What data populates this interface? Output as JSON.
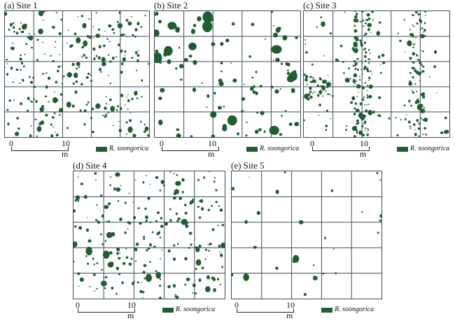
{
  "panels": [
    {
      "id": "p1",
      "title": "(a) Site 1",
      "scale_zero": "0",
      "scale_end": "10 m",
      "legend_label": "R. soongorica"
    },
    {
      "id": "p2",
      "title": "(b) Site 2",
      "scale_zero": "0",
      "scale_end": "10 m",
      "legend_label": "R. soongorica"
    },
    {
      "id": "p3",
      "title": "(c) Site 3",
      "scale_zero": "0",
      "scale_end": "10 m",
      "legend_label": "R. soongorica"
    },
    {
      "id": "p4",
      "title": "(d) Site 4",
      "scale_zero": "0",
      "scale_end": "10 m",
      "legend_label": "R. soongorica"
    },
    {
      "id": "p5",
      "title": "(e) Site 5",
      "scale_zero": "0",
      "scale_end": "10 m",
      "legend_label": "R. soongorica"
    }
  ],
  "colors": {
    "shrub": "#1f5e2f",
    "grid": "#3a4a5a"
  }
}
